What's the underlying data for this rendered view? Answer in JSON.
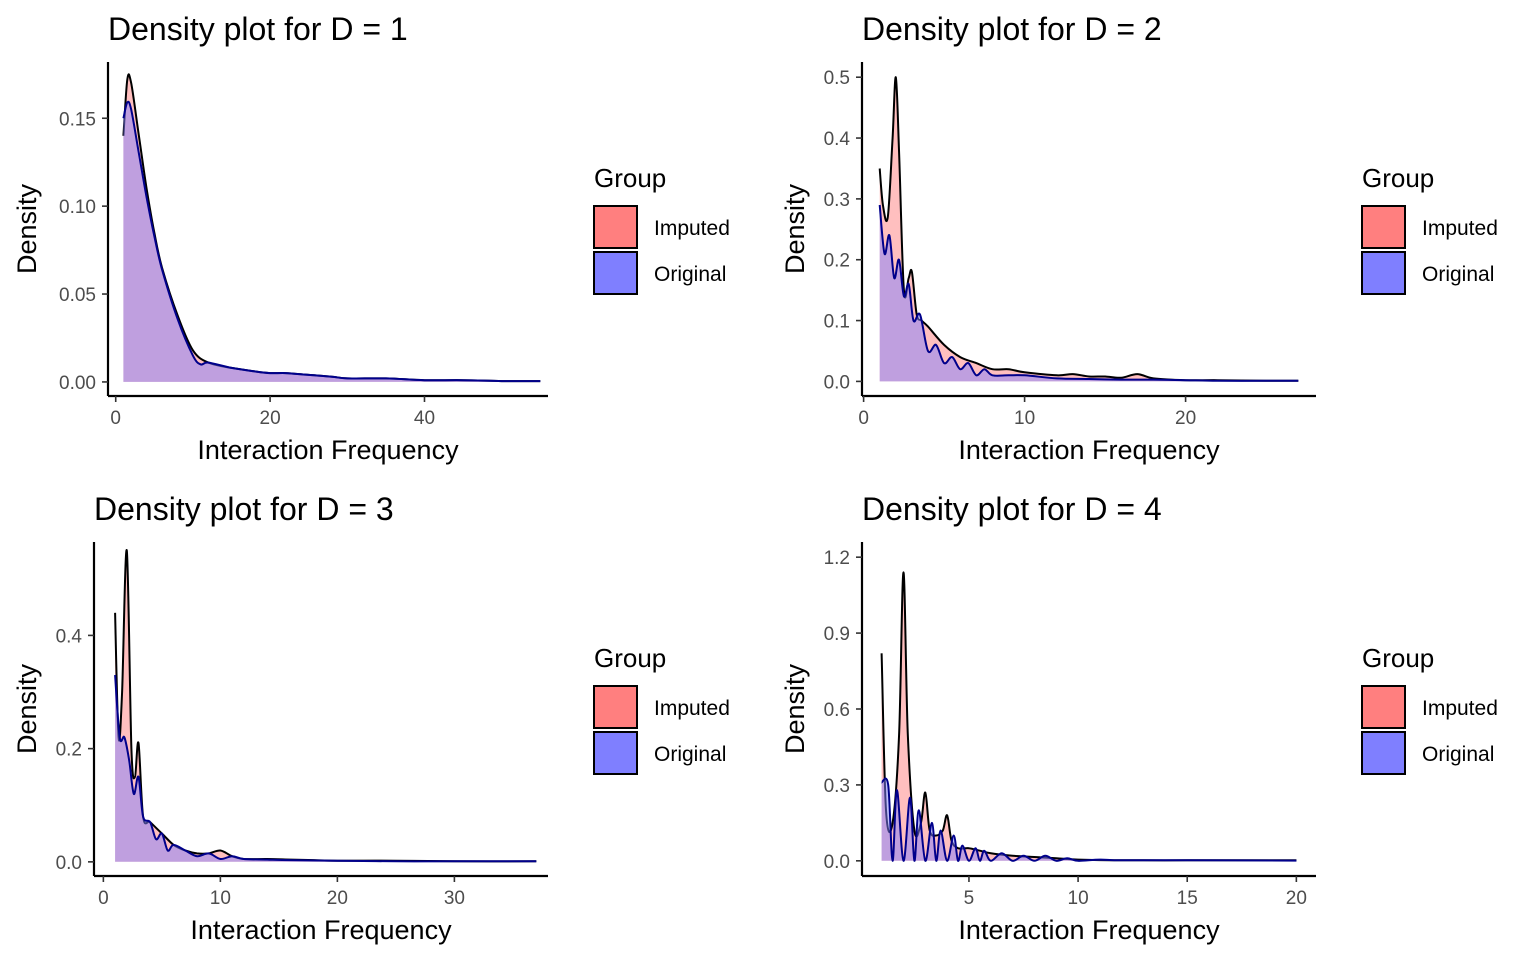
{
  "chart_data": [
    {
      "type": "area",
      "title": "Density plot for D = 1",
      "xlabel": "Interaction Frequency",
      "ylabel": "Density",
      "xlim": [
        -1,
        56
      ],
      "ylim": [
        -0.008,
        0.182
      ],
      "xticks": [
        0,
        20,
        40
      ],
      "yticks": [
        0.0,
        0.05,
        0.1,
        0.15
      ],
      "ytick_labels": [
        "0.00",
        "0.05",
        "0.10",
        "0.15"
      ],
      "legend": {
        "title": "Group",
        "placement": "right"
      },
      "series": [
        {
          "name": "Imputed",
          "color": "#ff7f7f",
          "x": [
            1,
            1.5,
            2,
            3,
            4,
            5,
            6,
            8,
            10,
            12,
            15,
            18,
            20,
            22,
            25,
            28,
            30,
            35,
            40,
            45,
            50,
            55
          ],
          "y": [
            0.14,
            0.172,
            0.17,
            0.14,
            0.11,
            0.085,
            0.065,
            0.038,
            0.018,
            0.011,
            0.008,
            0.006,
            0.005,
            0.005,
            0.004,
            0.003,
            0.002,
            0.002,
            0.001,
            0.001,
            0.0005,
            0.0005
          ]
        },
        {
          "name": "Original",
          "color": "#7f7fff",
          "x": [
            1,
            1.5,
            2,
            3,
            4,
            5,
            6,
            8,
            10,
            11,
            12,
            15,
            18,
            20,
            22,
            25,
            28,
            30,
            35,
            40,
            45,
            50,
            55
          ],
          "y": [
            0.15,
            0.159,
            0.155,
            0.13,
            0.105,
            0.083,
            0.064,
            0.036,
            0.015,
            0.01,
            0.011,
            0.008,
            0.006,
            0.005,
            0.005,
            0.004,
            0.003,
            0.002,
            0.002,
            0.001,
            0.001,
            0.0005,
            0.0005
          ]
        }
      ]
    },
    {
      "type": "area",
      "title": "Density plot for D = 2",
      "xlabel": "Interaction Frequency",
      "ylabel": "Density",
      "xlim": [
        -0.1,
        28.1
      ],
      "ylim": [
        -0.024,
        0.525
      ],
      "xticks": [
        0,
        10,
        20
      ],
      "yticks": [
        0.0,
        0.1,
        0.2,
        0.3,
        0.4,
        0.5
      ],
      "ytick_labels": [
        "0.0",
        "0.1",
        "0.2",
        "0.3",
        "0.4",
        "0.5"
      ],
      "legend": {
        "title": "Group",
        "placement": "right"
      },
      "series": [
        {
          "name": "Imputed",
          "color": "#ff7f7f",
          "x": [
            1,
            1.2,
            1.5,
            1.8,
            2,
            2.2,
            2.5,
            2.8,
            3,
            3.3,
            3.6,
            4,
            5,
            6,
            7,
            8,
            9,
            10,
            12,
            13,
            14,
            15,
            16,
            17,
            18,
            20,
            22,
            25,
            27
          ],
          "y": [
            0.35,
            0.29,
            0.27,
            0.4,
            0.5,
            0.38,
            0.15,
            0.17,
            0.18,
            0.11,
            0.1,
            0.09,
            0.06,
            0.04,
            0.03,
            0.02,
            0.02,
            0.015,
            0.01,
            0.012,
            0.008,
            0.008,
            0.006,
            0.012,
            0.005,
            0.002,
            0.002,
            0.001,
            0.001
          ]
        },
        {
          "name": "Original",
          "color": "#7f7fff",
          "x": [
            1,
            1.3,
            1.6,
            1.9,
            2.2,
            2.5,
            2.8,
            3.1,
            3.5,
            4,
            4.5,
            5,
            5.5,
            6,
            6.5,
            7,
            7.5,
            8,
            9,
            10,
            12,
            14,
            16,
            18,
            20,
            22,
            25,
            27
          ],
          "y": [
            0.29,
            0.21,
            0.24,
            0.17,
            0.2,
            0.14,
            0.16,
            0.1,
            0.11,
            0.05,
            0.06,
            0.03,
            0.04,
            0.02,
            0.03,
            0.01,
            0.02,
            0.01,
            0.01,
            0.01,
            0.005,
            0.004,
            0.003,
            0.003,
            0.002,
            0.001,
            0.001,
            0.001
          ]
        }
      ]
    },
    {
      "type": "area",
      "title": "Density plot for D = 3",
      "xlabel": "Interaction Frequency",
      "ylabel": "Density",
      "xlim": [
        -0.8,
        38
      ],
      "ylim": [
        -0.025,
        0.565
      ],
      "xticks": [
        0,
        10,
        20,
        30
      ],
      "yticks": [
        0.0,
        0.2,
        0.4
      ],
      "ytick_labels": [
        "0.0",
        "0.2",
        "0.4"
      ],
      "legend": {
        "title": "Group",
        "placement": "right"
      },
      "series": [
        {
          "name": "Imputed",
          "color": "#ff7f7f",
          "x": [
            1,
            1.3,
            1.6,
            2,
            2.4,
            2.7,
            3,
            3.4,
            4,
            5,
            6,
            7,
            8,
            9,
            10,
            11,
            12,
            14,
            16,
            18,
            20,
            25,
            30,
            37
          ],
          "y": [
            0.44,
            0.22,
            0.3,
            0.55,
            0.2,
            0.15,
            0.21,
            0.08,
            0.07,
            0.05,
            0.03,
            0.02,
            0.015,
            0.015,
            0.02,
            0.01,
            0.005,
            0.005,
            0.004,
            0.003,
            0.002,
            0.002,
            0.001,
            0.001
          ]
        },
        {
          "name": "Original",
          "color": "#7f7fff",
          "x": [
            1,
            1.4,
            1.8,
            2.2,
            2.6,
            3,
            3.4,
            4,
            4.5,
            5,
            5.5,
            6,
            7,
            8,
            9,
            10,
            11,
            12,
            14,
            16,
            20,
            25,
            30,
            37
          ],
          "y": [
            0.33,
            0.22,
            0.22,
            0.18,
            0.12,
            0.15,
            0.08,
            0.07,
            0.04,
            0.05,
            0.02,
            0.03,
            0.02,
            0.01,
            0.015,
            0.005,
            0.01,
            0.005,
            0.004,
            0.003,
            0.002,
            0.001,
            0.001,
            0.001
          ]
        }
      ]
    },
    {
      "type": "area",
      "title": "Density plot for D = 4",
      "xlabel": "Interaction Frequency",
      "ylabel": "Density",
      "xlim": [
        0.1,
        20.9
      ],
      "ylim": [
        -0.06,
        1.26
      ],
      "xticks": [
        5,
        10,
        15,
        20
      ],
      "yticks": [
        0.0,
        0.3,
        0.6,
        0.9,
        1.2
      ],
      "ytick_labels": [
        "0.0",
        "0.3",
        "0.6",
        "0.9",
        "1.2"
      ],
      "legend": {
        "title": "Group",
        "placement": "right"
      },
      "series": [
        {
          "name": "Imputed",
          "color": "#ff7f7f",
          "x": [
            1,
            1.2,
            1.5,
            1.8,
            2,
            2.2,
            2.5,
            2.8,
            3,
            3.2,
            3.5,
            3.8,
            4,
            4.2,
            4.5,
            5,
            5.5,
            6,
            7,
            8,
            9,
            10,
            12,
            15,
            18,
            20
          ],
          "y": [
            0.82,
            0.2,
            0.15,
            0.5,
            1.14,
            0.5,
            0.12,
            0.15,
            0.27,
            0.12,
            0.1,
            0.12,
            0.18,
            0.08,
            0.05,
            0.05,
            0.04,
            0.03,
            0.02,
            0.015,
            0.01,
            0.005,
            0.002,
            0.002,
            0.002,
            0.002
          ]
        },
        {
          "name": "Original",
          "color": "#7f7fff",
          "x": [
            1,
            1.3,
            1.5,
            1.7,
            2,
            2.3,
            2.5,
            2.7,
            3,
            3.3,
            3.5,
            3.7,
            4,
            4.3,
            4.5,
            4.7,
            5,
            5.3,
            5.5,
            5.7,
            6,
            6.5,
            7,
            7.5,
            8,
            8.5,
            9,
            9.5,
            10,
            11,
            12,
            15,
            20
          ],
          "y": [
            0.31,
            0.3,
            0.0,
            0.28,
            0.0,
            0.25,
            0.0,
            0.2,
            0.0,
            0.15,
            0.0,
            0.12,
            0.0,
            0.1,
            0.0,
            0.06,
            0.0,
            0.05,
            0.0,
            0.04,
            0.0,
            0.03,
            0.0,
            0.02,
            0.0,
            0.02,
            0.0,
            0.01,
            0.0,
            0.005,
            0.002,
            0.002,
            0.001
          ]
        }
      ]
    }
  ]
}
